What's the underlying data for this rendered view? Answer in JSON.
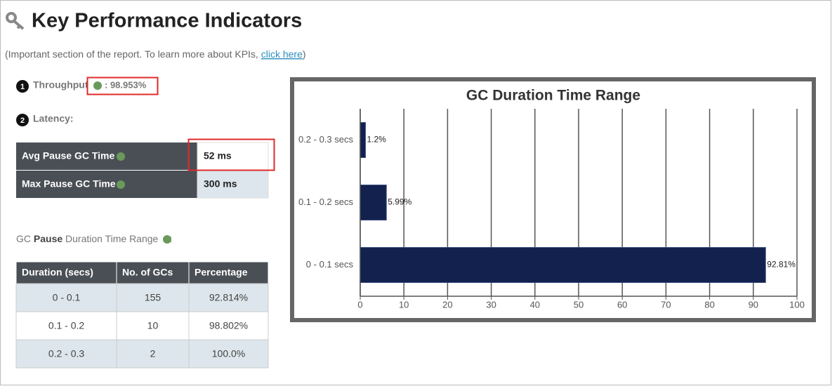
{
  "header": {
    "title": "Key Performance Indicators",
    "intro": "(Important section of the report. To learn more about KPIs,",
    "link": "click here",
    "intro_end": ")"
  },
  "throughput": {
    "number": "1",
    "label": "Throughput",
    "value": ": 98.953%"
  },
  "latency": {
    "number": "2",
    "label": "Latency:",
    "rows": [
      [
        "Avg Pause GC Time",
        "52 ms"
      ],
      [
        "Max Pause GC Time",
        "300 ms"
      ]
    ]
  },
  "pause_table": {
    "caption": [
      "GC",
      "Pause",
      "Duration Time Range",
      ":"
    ],
    "columns": [
      "Duration (secs)",
      "No. of GCs",
      "Percentage"
    ],
    "rows": [
      [
        "0 - 0.1",
        "155",
        "92.814%"
      ],
      [
        "0.1 - 0.2",
        "10",
        "98.802%"
      ],
      [
        "0.2 - 0.3",
        "2",
        "100.0%"
      ]
    ]
  },
  "chart_data": {
    "type": "bar",
    "orientation": "horizontal",
    "title": "GC Duration Time Range",
    "categories": [
      "0.2 - 0.3 secs",
      "0.1 - 0.2 secs",
      "0 - 0.1 secs"
    ],
    "values": [
      1.2,
      5.99,
      92.81
    ],
    "value_labels": [
      "1.2%",
      "5.99%",
      "92.81%"
    ],
    "color": "#13214f",
    "xlim": [
      0,
      100
    ],
    "xticks": [
      0,
      10,
      20,
      30,
      40,
      50,
      60,
      70,
      80,
      90,
      100
    ],
    "grid": true
  }
}
